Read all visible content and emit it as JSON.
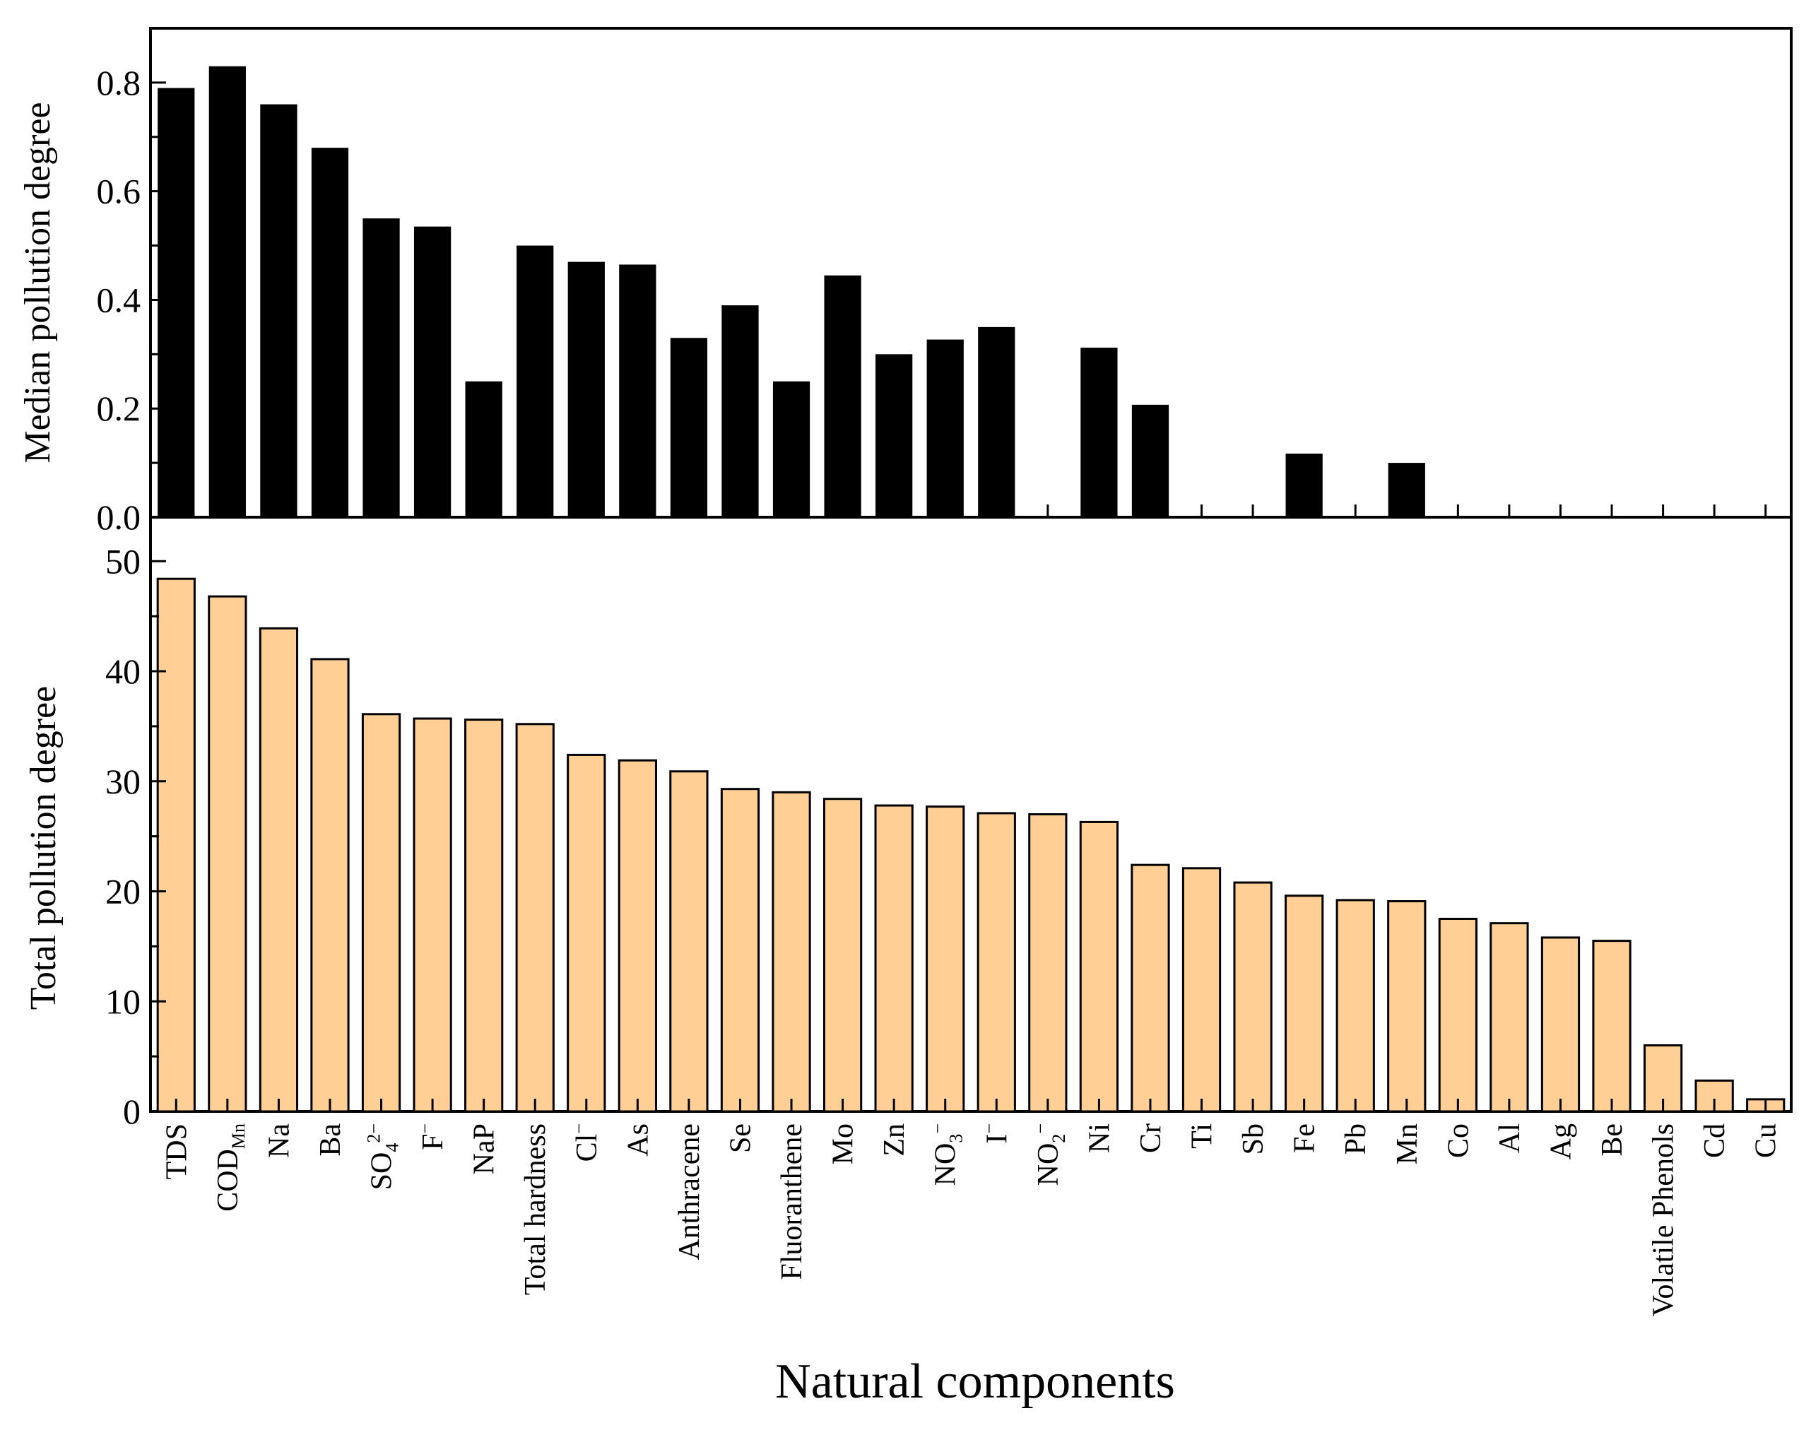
{
  "colors": {
    "top_bar": "#000000",
    "bottom_bar": "#FFCF96",
    "bar_outline": "#000000",
    "axis": "#000000",
    "background": "#FFFFFF"
  },
  "chart_data": [
    {
      "type": "bar",
      "panel": "top",
      "ylabel": "Median pollution degree",
      "ylim": [
        0,
        0.9
      ],
      "yticks": [
        "0.0",
        "0.2",
        "0.4",
        "0.6",
        "0.8"
      ],
      "grid": false,
      "categories": [
        "TDS",
        "COD_Mn",
        "Na",
        "Ba",
        "SO4^2-",
        "F^-",
        "NaP",
        "Total hardness",
        "Cl^-",
        "As",
        "Anthracene",
        "Se",
        "Fluoranthene",
        "Mo",
        "Zn",
        "NO3^-",
        "I^-",
        "NO2^-",
        "Ni",
        "Cr",
        "Ti",
        "Sb",
        "Fe",
        "Pb",
        "Mn",
        "Co",
        "Al",
        "Ag",
        "Be",
        "Volatile Phenols",
        "Cd",
        "Cu"
      ],
      "values": [
        0.79,
        0.83,
        0.76,
        0.68,
        0.55,
        0.535,
        0.25,
        0.5,
        0.47,
        0.465,
        0.33,
        0.39,
        0.25,
        0.445,
        0.3,
        0.327,
        0.35,
        0,
        0.312,
        0.207,
        0,
        0,
        0.117,
        0,
        0.1,
        0,
        0,
        0,
        0,
        0,
        0,
        0
      ]
    },
    {
      "type": "bar",
      "panel": "bottom",
      "ylabel": "Total pollution degree",
      "ylim": [
        0,
        54
      ],
      "yticks": [
        "0",
        "10",
        "20",
        "30",
        "40",
        "50"
      ],
      "grid": false,
      "xlabel": "Natural components",
      "categories": [
        "TDS",
        "COD_Mn",
        "Na",
        "Ba",
        "SO4^2-",
        "F^-",
        "NaP",
        "Total hardness",
        "Cl^-",
        "As",
        "Anthracene",
        "Se",
        "Fluoranthene",
        "Mo",
        "Zn",
        "NO3^-",
        "I^-",
        "NO2^-",
        "Ni",
        "Cr",
        "Ti",
        "Sb",
        "Fe",
        "Pb",
        "Mn",
        "Co",
        "Al",
        "Ag",
        "Be",
        "Volatile Phenols",
        "Cd",
        "Cu"
      ],
      "values": [
        48.4,
        46.8,
        43.9,
        41.1,
        36.1,
        35.7,
        35.6,
        35.2,
        32.4,
        31.9,
        30.9,
        29.3,
        29.0,
        28.4,
        27.8,
        27.7,
        27.1,
        27.0,
        26.3,
        22.4,
        22.1,
        20.8,
        19.6,
        19.2,
        19.1,
        17.5,
        17.1,
        15.8,
        15.5,
        6.0,
        2.8,
        1.1
      ]
    }
  ],
  "labels": {
    "top_ylabel": "Median pollution degree",
    "bottom_ylabel": "Total pollution degree",
    "xlabel": "Natural components",
    "top_ticks": [
      "0.0",
      "0.2",
      "0.4",
      "0.6",
      "0.8"
    ],
    "bottom_ticks": [
      "0",
      "10",
      "20",
      "30",
      "40",
      "50"
    ],
    "cat_text": [
      "TDS",
      "COD",
      "Na",
      "Ba",
      "SO",
      "F",
      "NaP",
      "Total hardness",
      "Cl",
      "As",
      "Anthracene",
      "Se",
      "Fluoranthene",
      "Mo",
      "Zn",
      "NO",
      "I",
      "NO",
      "Ni",
      "Cr",
      "Ti",
      "Sb",
      "Fe",
      "Pb",
      "Mn",
      "Co",
      "Al",
      "Ag",
      "Be",
      "Volatile Phenols",
      "Cd",
      "Cu"
    ],
    "cat_sub": [
      "",
      "Mn",
      "",
      "",
      "4",
      "",
      "",
      "",
      "",
      "",
      "",
      "",
      "",
      "",
      "",
      "3",
      "",
      "2",
      "",
      "",
      "",
      "",
      "",
      "",
      "",
      "",
      "",
      "",
      "",
      "",
      "",
      ""
    ],
    "cat_sup": [
      "",
      "",
      "",
      "",
      "2−",
      "−",
      "",
      "",
      "−",
      "",
      "",
      "",
      "",
      "",
      "",
      "−",
      "−",
      "−",
      "",
      "",
      "",
      "",
      "",
      "",
      "",
      "",
      "",
      "",
      "",
      "",
      "",
      ""
    ]
  }
}
